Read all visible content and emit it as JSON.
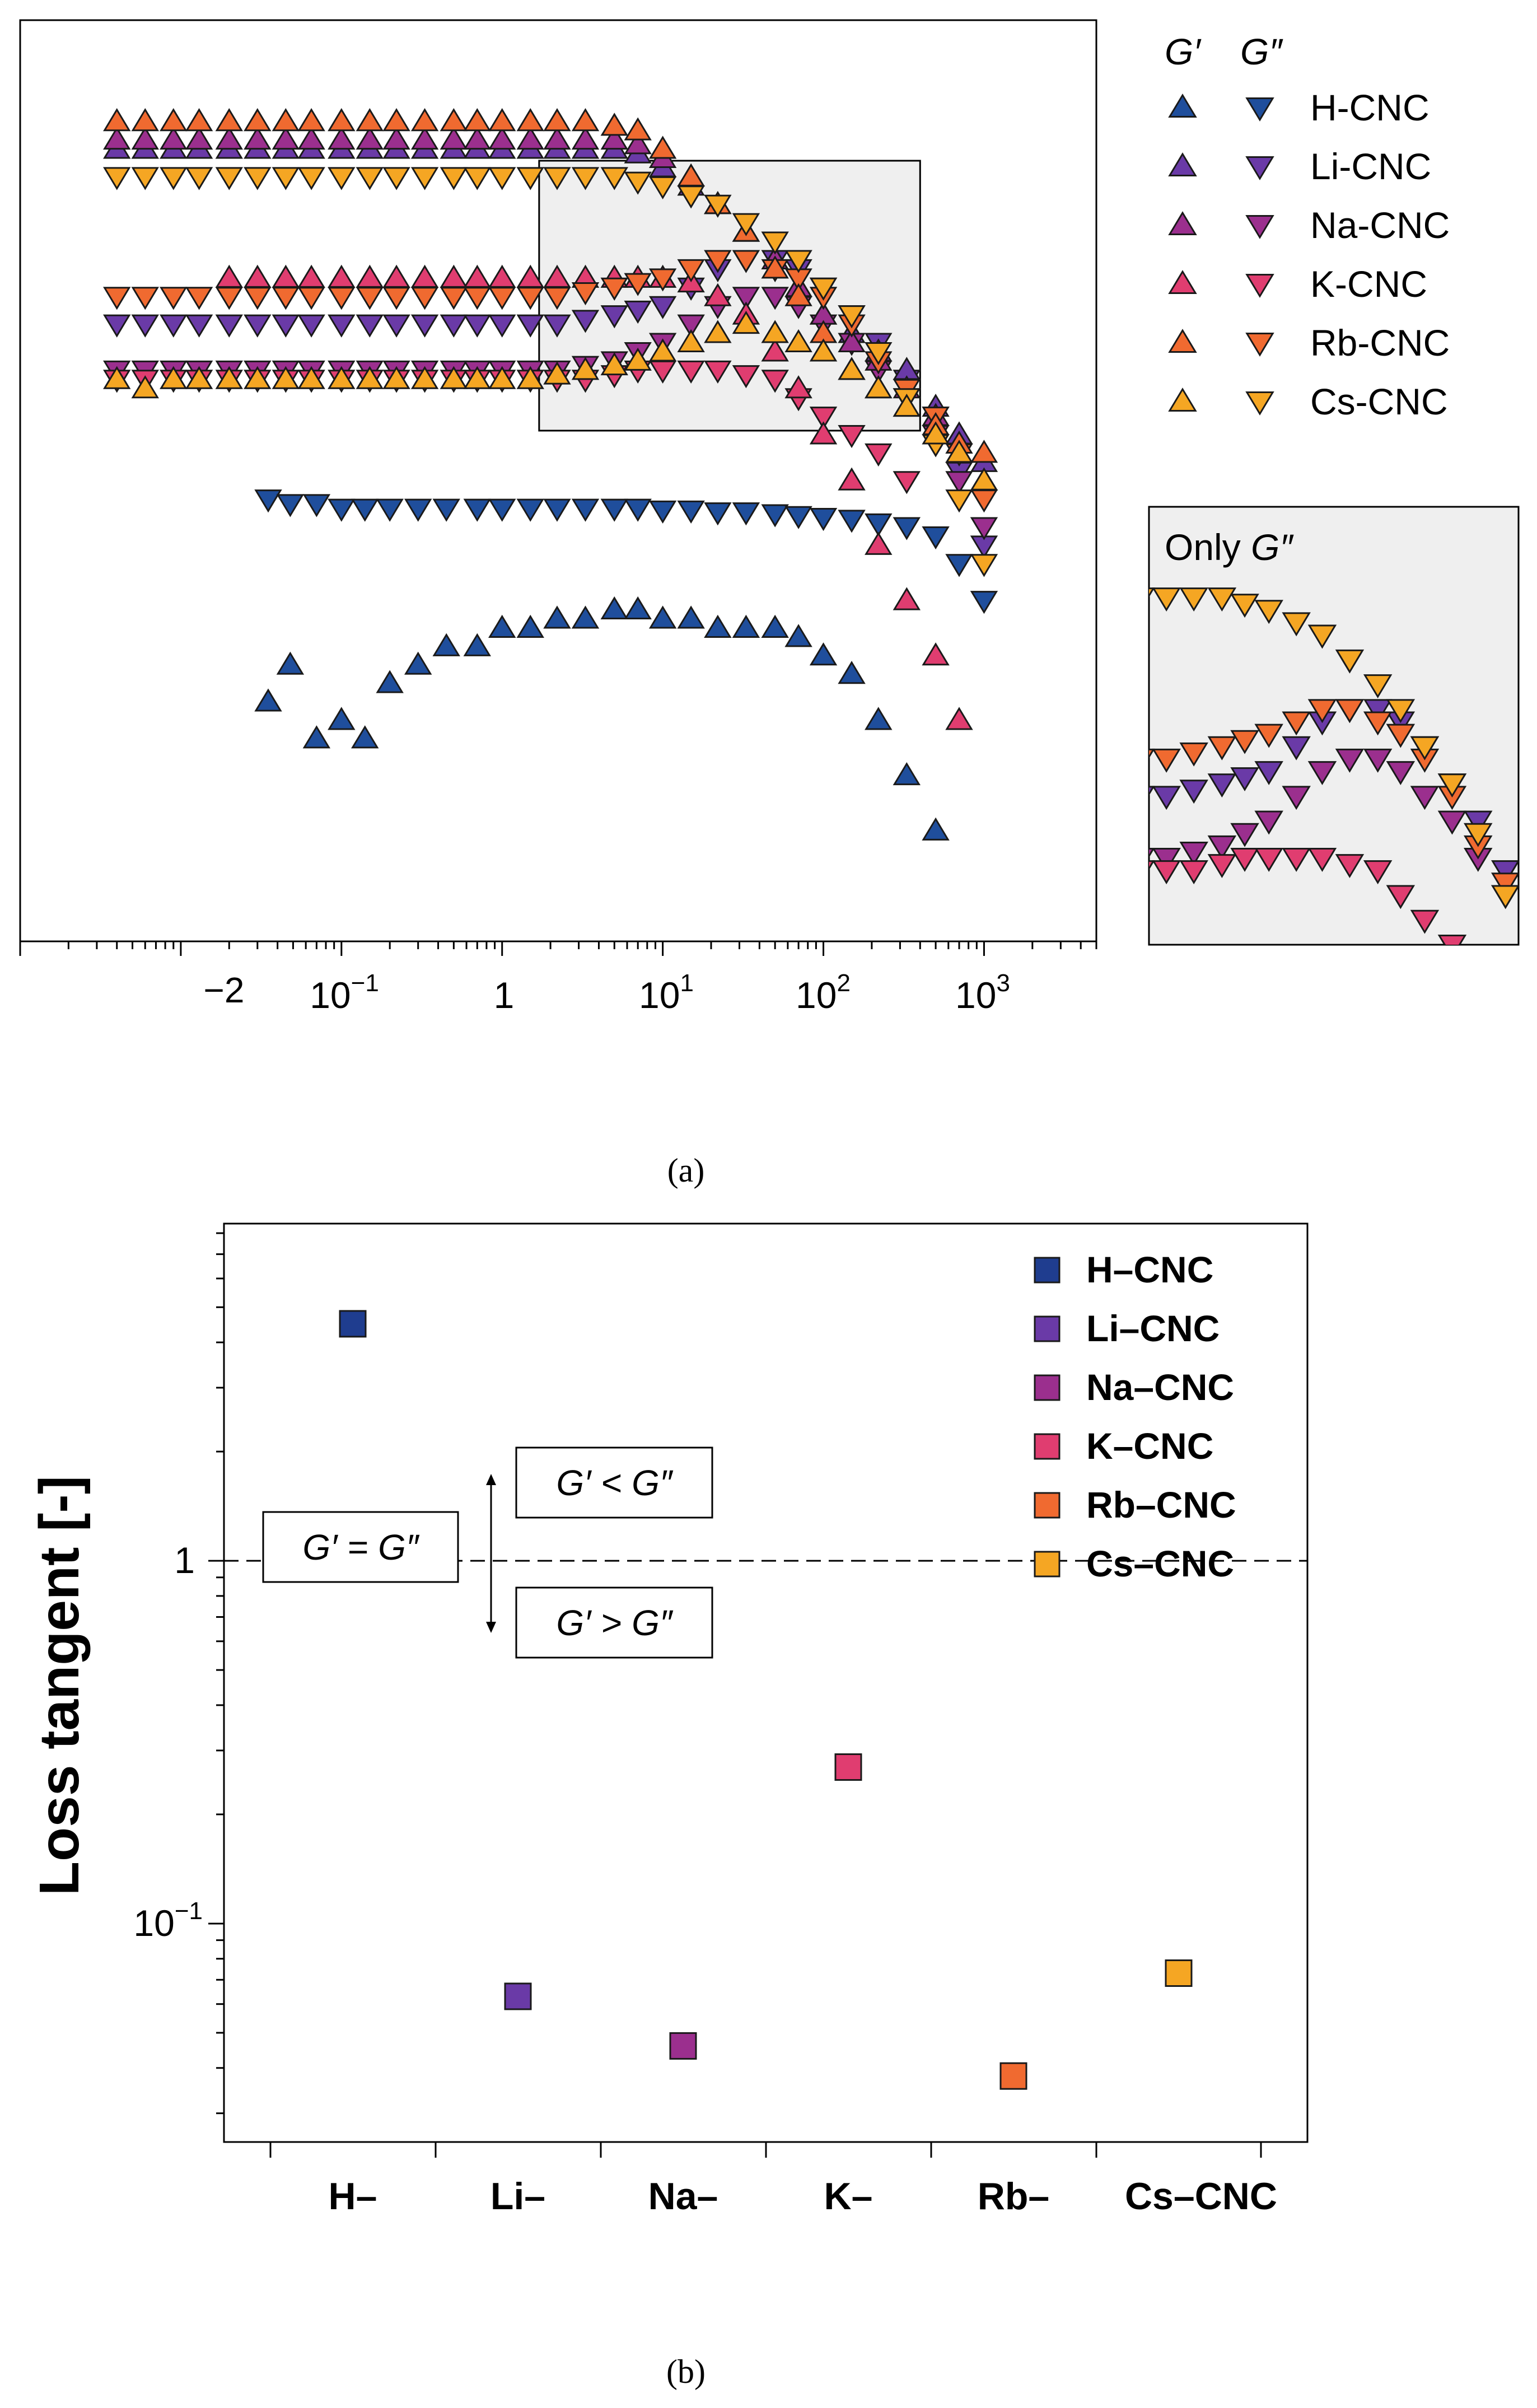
{
  "chart_data": [
    {
      "panel": "a",
      "type": "scatter",
      "caption": "(a)",
      "xscale": "log",
      "xlim": [
        0.001,
        5000
      ],
      "ylim": [
        0,
        100
      ],
      "y_ticks_shown": false,
      "x_ticks": [
        {
          "label": "−2",
          "sup": ""
        },
        {
          "label": "10",
          "sup": "−1"
        },
        {
          "label": "1",
          "sup": ""
        },
        {
          "label": "10",
          "sup": "1"
        },
        {
          "label": "10",
          "sup": "2"
        },
        {
          "label": "10",
          "sup": "3"
        }
      ],
      "legend_header": {
        "g1": "G′",
        "g2": "G″"
      },
      "inset_label": {
        "prefix": "Only ",
        "italic": "G″"
      },
      "zoom_box_x": [
        1.7,
        400
      ],
      "series": [
        {
          "name": "H-CNC",
          "color": "#1f4e9c",
          "G1": {
            "x": [
              0.035,
              0.048,
              0.07,
              0.1,
              0.14,
              0.2,
              0.3,
              0.45,
              0.7,
              1,
              1.5,
              2.2,
              3.3,
              5,
              7,
              10,
              15,
              22,
              33,
              50,
              70,
              100,
              150,
              220,
              330,
              500
            ],
            "y": [
              26,
              30,
              22,
              24,
              22,
              28,
              30,
              32,
              32,
              34,
              34,
              35,
              35,
              36,
              36,
              35,
              35,
              34,
              34,
              34,
              33,
              31,
              29,
              24,
              18,
              12
            ]
          },
          "G2": {
            "x": [
              0.035,
              0.048,
              0.07,
              0.1,
              0.14,
              0.2,
              0.3,
              0.45,
              0.7,
              1,
              1.5,
              2.2,
              3.3,
              5,
              7,
              10,
              15,
              22,
              33,
              50,
              70,
              100,
              150,
              220,
              330,
              500,
              700,
              1000
            ],
            "y": [
              48,
              47.5,
              47.5,
              47,
              47,
              47,
              47,
              47,
              47,
              47,
              47,
              47,
              47,
              47,
              47,
              46.8,
              46.8,
              46.6,
              46.6,
              46.4,
              46.2,
              46,
              45.8,
              45.4,
              45,
              44,
              41,
              37
            ]
          }
        },
        {
          "name": "Li-CNC",
          "color": "#6a3aa7",
          "G1": {
            "x": [
              0.004,
              0.006,
              0.009,
              0.013,
              0.02,
              0.03,
              0.045,
              0.065,
              0.1,
              0.15,
              0.22,
              0.33,
              0.5,
              0.7,
              1,
              1.5,
              2.2,
              3.3,
              5,
              7,
              10,
              15,
              22,
              33,
              50,
              70,
              100,
              150,
              220,
              330,
              500,
              700,
              1000
            ],
            "y": [
              86,
              86,
              86,
              86,
              86,
              86,
              86,
              86,
              86,
              86,
              86,
              86,
              86,
              86,
              86,
              86,
              86,
              86,
              86,
              85.5,
              84,
              82,
              80,
              77,
              74,
              71,
              68,
              66,
              64,
              62,
              58,
              55,
              52
            ]
          },
          "G2": {
            "x": [
              0.004,
              0.006,
              0.009,
              0.013,
              0.02,
              0.03,
              0.045,
              0.065,
              0.1,
              0.15,
              0.22,
              0.33,
              0.5,
              0.7,
              1,
              1.5,
              2.2,
              3.3,
              5,
              7,
              10,
              15,
              22,
              33,
              50,
              70,
              100,
              150,
              220,
              330,
              500,
              700,
              1000
            ],
            "y": [
              67,
              67,
              67,
              67,
              67,
              67,
              67,
              67,
              67,
              67,
              67,
              67,
              67,
              67,
              67,
              67,
              67,
              67.5,
              68,
              68.5,
              69,
              71,
              73,
              74,
              74,
              73,
              71,
              68,
              65,
              61,
              57,
              51,
              43
            ]
          }
        },
        {
          "name": "Na-CNC",
          "color": "#9b2f8e",
          "G1": {
            "x": [
              0.004,
              0.006,
              0.009,
              0.013,
              0.02,
              0.03,
              0.045,
              0.065,
              0.1,
              0.15,
              0.22,
              0.33,
              0.5,
              0.7,
              1,
              1.5,
              2.2,
              3.3,
              5,
              7,
              10,
              15,
              22,
              33,
              50,
              70,
              100,
              150,
              220,
              330,
              500,
              700,
              1000
            ],
            "y": [
              87,
              87,
              87,
              87,
              87,
              87,
              87,
              87,
              87,
              87,
              87,
              87,
              87,
              87,
              87,
              87,
              87,
              87,
              87,
              86.5,
              85,
              83,
              80,
              77,
              74,
              71,
              68,
              65,
              63,
              60,
              57,
              53,
              50
            ]
          },
          "G2": {
            "x": [
              0.004,
              0.006,
              0.009,
              0.013,
              0.02,
              0.03,
              0.045,
              0.065,
              0.1,
              0.15,
              0.22,
              0.33,
              0.5,
              0.7,
              1,
              1.5,
              2.2,
              3.3,
              5,
              7,
              10,
              15,
              22,
              33,
              50,
              70,
              100,
              150,
              220,
              330,
              500,
              700,
              1000
            ],
            "y": [
              62,
              62,
              62,
              62,
              62,
              62,
              62,
              62,
              62,
              62,
              62,
              62,
              62,
              62,
              62,
              62,
              62,
              62.5,
              63,
              64,
              65,
              67,
              69,
              70,
              70,
              69,
              67,
              65,
              62,
              59,
              55,
              50,
              45
            ]
          }
        },
        {
          "name": "K-CNC",
          "color": "#e03d70",
          "G1": {
            "x": [
              0.02,
              0.03,
              0.045,
              0.065,
              0.1,
              0.15,
              0.22,
              0.33,
              0.5,
              0.7,
              1,
              1.5,
              2.2,
              3.3,
              5,
              7,
              10,
              15,
              22,
              33,
              50,
              70,
              100,
              150,
              220,
              330,
              500,
              700
            ],
            "y": [
              72,
              72,
              72,
              72,
              72,
              72,
              72,
              72,
              72,
              72,
              72,
              72,
              72,
              72,
              72,
              72,
              72,
              71.5,
              70,
              68,
              64,
              60,
              55,
              50,
              43,
              37,
              31,
              24
            ]
          },
          "G2": {
            "x": [
              0.004,
              0.006,
              0.009,
              0.013,
              0.02,
              0.03,
              0.045,
              0.065,
              0.1,
              0.15,
              0.22,
              0.33,
              0.5,
              0.7,
              1,
              1.5,
              2.2,
              3.3,
              5,
              7,
              10,
              15,
              22,
              33,
              50,
              70,
              100,
              150,
              220,
              330
            ],
            "y": [
              61,
              61,
              61,
              61,
              61,
              61,
              61,
              61,
              61,
              61,
              61,
              61,
              61,
              61,
              61,
              61,
              61,
              61,
              61.5,
              62,
              62,
              62,
              62,
              61.5,
              61,
              59,
              57,
              55,
              53,
              50
            ]
          }
        },
        {
          "name": "Rb-CNC",
          "color": "#f06a30",
          "G1": {
            "x": [
              0.004,
              0.006,
              0.009,
              0.013,
              0.02,
              0.03,
              0.045,
              0.065,
              0.1,
              0.15,
              0.22,
              0.33,
              0.5,
              0.7,
              1,
              1.5,
              2.2,
              3.3,
              5,
              7,
              10,
              15,
              22,
              33,
              50,
              70,
              100,
              150,
              220,
              330,
              500,
              700,
              1000
            ],
            "y": [
              89,
              89,
              89,
              89,
              89,
              89,
              89,
              89,
              89,
              89,
              89,
              89,
              89,
              89,
              89,
              89,
              89,
              89,
              88.5,
              88,
              86,
              83,
              80,
              77,
              73,
              70,
              66,
              62,
              60,
              58,
              56,
              54,
              53
            ]
          },
          "G2": {
            "x": [
              0.004,
              0.006,
              0.009,
              0.013,
              0.02,
              0.03,
              0.045,
              0.065,
              0.1,
              0.15,
              0.22,
              0.33,
              0.5,
              0.7,
              1,
              1.5,
              2.2,
              3.3,
              5,
              7,
              10,
              15,
              22,
              33,
              50,
              70,
              100,
              150,
              220,
              330,
              500,
              700,
              1000
            ],
            "y": [
              70,
              70,
              70,
              70,
              70,
              70,
              70,
              70,
              70,
              70,
              70,
              70,
              70,
              70,
              70,
              70,
              70,
              70.5,
              71,
              71.5,
              72,
              73,
              74,
              74,
              73,
              72,
              70,
              67,
              63,
              60,
              57,
              53,
              48
            ]
          }
        },
        {
          "name": "Cs-CNC",
          "color": "#f5a623",
          "G1": {
            "x": [
              0.004,
              0.006,
              0.009,
              0.013,
              0.02,
              0.03,
              0.045,
              0.065,
              0.1,
              0.15,
              0.22,
              0.33,
              0.5,
              0.7,
              1,
              1.5,
              2.2,
              3.3,
              5,
              7,
              10,
              15,
              22,
              33,
              50,
              70,
              100,
              150,
              220,
              330,
              500,
              700,
              1000
            ],
            "y": [
              61,
              60,
              61,
              61,
              61,
              61,
              61,
              61,
              61,
              61,
              61,
              61,
              61,
              61,
              61,
              61,
              61.5,
              62,
              62.5,
              63,
              64,
              65,
              66,
              67,
              66,
              65,
              64,
              62,
              60,
              58,
              55,
              53,
              50
            ]
          },
          "G2": {
            "x": [
              0.004,
              0.006,
              0.009,
              0.013,
              0.02,
              0.03,
              0.045,
              0.065,
              0.1,
              0.15,
              0.22,
              0.33,
              0.5,
              0.7,
              1,
              1.5,
              2.2,
              3.3,
              5,
              7,
              10,
              15,
              22,
              33,
              50,
              70,
              100,
              150,
              220,
              330,
              500,
              700,
              1000
            ],
            "y": [
              83,
              83,
              83,
              83,
              83,
              83,
              83,
              83,
              83,
              83,
              83,
              83,
              83,
              83,
              83,
              83,
              83,
              83,
              83,
              82.5,
              82,
              81,
              80,
              78,
              76,
              74,
              71,
              68,
              64,
              59,
              54,
              48,
              41
            ]
          }
        }
      ]
    },
    {
      "panel": "b",
      "type": "scatter",
      "caption": "(b)",
      "ylabel": "Loss tangent [-]",
      "yscale": "log",
      "ylim": [
        0.025,
        8.5
      ],
      "y_tick_labels": [
        {
          "value": 1,
          "label": "1",
          "sup": ""
        },
        {
          "value": 0.1,
          "label": "10",
          "sup": "−1"
        }
      ],
      "categories": [
        "H–",
        "Li–",
        "Na–",
        "K–",
        "Rb–",
        "Cs–CNC"
      ],
      "values": [
        4.5,
        0.063,
        0.046,
        0.27,
        0.038,
        0.073
      ],
      "series": [
        {
          "name": "H-CNC",
          "color": "#1f3d8f"
        },
        {
          "name": "Li-CNC",
          "color": "#6a3aa7"
        },
        {
          "name": "Na-CNC",
          "color": "#9b2f8e"
        },
        {
          "name": "K-CNC",
          "color": "#e03d70"
        },
        {
          "name": "Rb-CNC",
          "color": "#f06a30"
        },
        {
          "name": "Cs-CNC",
          "color": "#f5a623"
        }
      ],
      "legend_labels": [
        "H–CNC",
        "Li–CNC",
        "Na–CNC",
        "K–CNC",
        "Rb–CNC",
        "Cs–CNC"
      ],
      "reference_line": {
        "value": 1,
        "style": "dashed"
      },
      "annotations": {
        "equal": "G′ = G″",
        "above": "G′ < G″",
        "below": "G′ > G″"
      }
    }
  ]
}
